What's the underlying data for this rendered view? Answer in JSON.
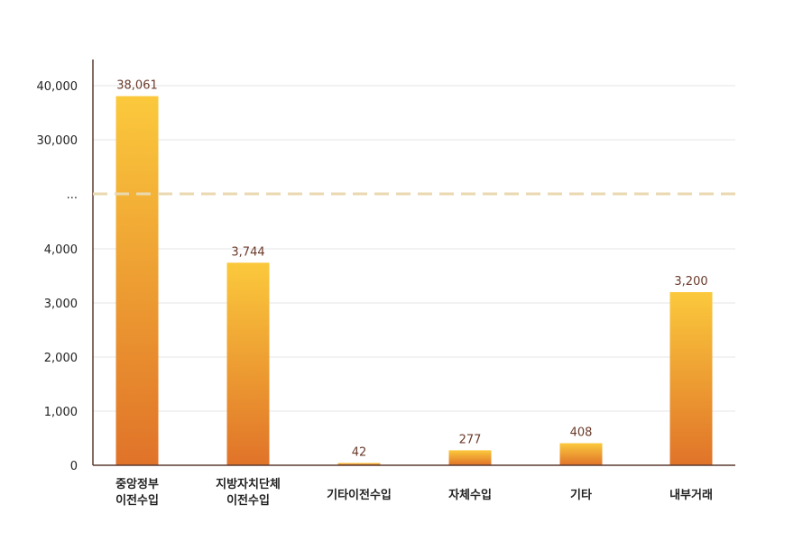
{
  "chart_data": {
    "type": "bar",
    "categories": [
      [
        "중앙정부",
        "이전수입"
      ],
      [
        "지방자치단체",
        "이전수입"
      ],
      [
        "기타이전수입"
      ],
      [
        "자체수입"
      ],
      [
        "기타"
      ],
      [
        "내부거래"
      ]
    ],
    "values": [
      38061,
      3744,
      42,
      277,
      408,
      3200
    ],
    "value_labels": [
      "38,061",
      "3,744",
      "42",
      "277",
      "408",
      "3,200"
    ],
    "y_ticks": [
      "0",
      "1,000",
      "2,000",
      "3,000",
      "4,000",
      "...",
      "30,000",
      "40,000"
    ],
    "axis_break": true,
    "lower_range": [
      0,
      4500
    ],
    "upper_range": [
      25000,
      40000
    ],
    "grid": true,
    "colors": {
      "bar_top": "#fbc93c",
      "bar_bottom": "#e07329",
      "break_line": "#ead9b0",
      "axis": "#5b3a30",
      "grid": "#e6e6e6",
      "value_text": "#6b3a2a"
    }
  }
}
